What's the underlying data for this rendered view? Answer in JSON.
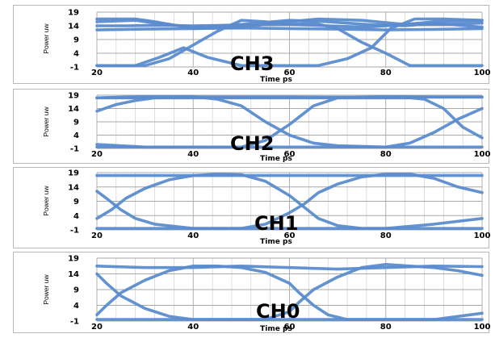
{
  "figure": {
    "title": ""
  },
  "colors": {
    "trace": "#5b8ccf",
    "grid": "#c9c9c9",
    "frame": "#b8b8b8"
  },
  "chart_data": [
    {
      "type": "line",
      "title": "CH3",
      "xlabel": "Time ps",
      "ylabel": "Power uw",
      "xlim": [
        20,
        100
      ],
      "ylim": [
        -1,
        19
      ],
      "xticks": [
        "20",
        "40",
        "60",
        "80",
        "100"
      ],
      "yticks": [
        "19",
        "14",
        "9",
        "4",
        "-1"
      ],
      "grid": true,
      "series": [
        {
          "x": [
            20,
            28,
            32,
            40,
            50,
            60,
            66,
            75,
            84,
            90,
            100
          ],
          "y": [
            16.5,
            16.5,
            15.5,
            13,
            13.5,
            15.5,
            16.5,
            16,
            14.5,
            15.5,
            16
          ]
        },
        {
          "x": [
            20,
            26,
            33,
            40,
            50,
            60,
            68,
            76,
            84,
            92,
            100
          ],
          "y": [
            14,
            14,
            14.2,
            14,
            14.3,
            14.5,
            14,
            13.5,
            14.5,
            14.5,
            15
          ]
        },
        {
          "x": [
            20,
            30,
            40,
            50,
            60,
            70,
            80,
            90,
            100
          ],
          "y": [
            12.5,
            12.8,
            13,
            13.2,
            13,
            12.8,
            12.5,
            12.7,
            13
          ]
        },
        {
          "x": [
            20,
            28,
            32,
            40,
            50,
            60,
            68,
            76,
            84,
            90,
            100
          ],
          "y": [
            15.5,
            16,
            15,
            13.5,
            14.5,
            16,
            15.5,
            14.5,
            14,
            15,
            13.5
          ]
        },
        {
          "x": [
            20,
            30,
            35,
            40,
            45,
            50,
            55,
            60,
            65,
            70,
            75,
            80,
            85,
            90,
            100
          ],
          "y": [
            -0.5,
            -0.5,
            2,
            7,
            12,
            16,
            15.5,
            14.5,
            15,
            13,
            8,
            4,
            -0.5,
            -0.5,
            -0.5
          ]
        },
        {
          "x": [
            20,
            28,
            33,
            38,
            43,
            50,
            60,
            66,
            72,
            77,
            81,
            86,
            92,
            100
          ],
          "y": [
            -0.5,
            -0.5,
            2.5,
            6,
            2.5,
            -0.5,
            -0.5,
            -0.5,
            2,
            6,
            13,
            16.5,
            16.5,
            16
          ]
        }
      ]
    },
    {
      "type": "line",
      "title": "CH2",
      "xlabel": "Time ps",
      "ylabel": "Power uw",
      "xlim": [
        20,
        100
      ],
      "ylim": [
        -1,
        19
      ],
      "xticks": [
        "20",
        "40",
        "60",
        "80",
        "100"
      ],
      "yticks": [
        "19",
        "14",
        "9",
        "4",
        "-1"
      ],
      "grid": true,
      "series": [
        {
          "x": [
            20,
            30,
            35,
            40,
            45,
            50,
            55,
            60,
            65,
            70,
            80,
            90,
            100
          ],
          "y": [
            18,
            18.5,
            18.5,
            18.5,
            17.5,
            15,
            9,
            4,
            1,
            0,
            -0.5,
            -0.5,
            -0.5
          ]
        },
        {
          "x": [
            20,
            30,
            40,
            50,
            55,
            60,
            65,
            70,
            80,
            90,
            100
          ],
          "y": [
            0.5,
            -0.5,
            -0.5,
            -0.5,
            2,
            8,
            15,
            18,
            18.5,
            18.3,
            18.3
          ]
        },
        {
          "x": [
            20,
            24,
            28,
            32,
            40,
            50,
            60,
            70,
            80,
            90,
            95,
            100
          ],
          "y": [
            13,
            15.5,
            17,
            18,
            18.3,
            18.3,
            18.3,
            18.2,
            18.2,
            18.3,
            18.3,
            18.3
          ]
        },
        {
          "x": [
            20,
            60,
            70,
            80,
            85,
            90,
            95,
            100
          ],
          "y": [
            -0.5,
            -0.5,
            -0.5,
            -0.5,
            1,
            5,
            10,
            14
          ]
        },
        {
          "x": [
            20,
            60,
            70,
            80,
            85,
            88,
            92,
            96,
            100
          ],
          "y": [
            18,
            18,
            18,
            18,
            18,
            17.5,
            14,
            7,
            3
          ]
        }
      ]
    },
    {
      "type": "line",
      "title": "CH1",
      "xlabel": "Time ps",
      "ylabel": "Power uw",
      "xlim": [
        20,
        100
      ],
      "ylim": [
        -1,
        19
      ],
      "xticks": [
        "20",
        "40",
        "60",
        "80",
        "100"
      ],
      "yticks": [
        "19",
        "14",
        "9",
        "4",
        "-1"
      ],
      "grid": true,
      "series": [
        {
          "x": [
            20,
            40,
            60,
            80,
            100
          ],
          "y": [
            18,
            18,
            18,
            18,
            18
          ]
        },
        {
          "x": [
            20,
            22,
            25,
            28,
            32,
            40,
            50,
            60,
            70,
            80,
            90,
            100
          ],
          "y": [
            12.5,
            10,
            6,
            3,
            1,
            -0.5,
            -0.5,
            -0.5,
            -0.5,
            -0.5,
            1,
            3
          ]
        },
        {
          "x": [
            20,
            23,
            26,
            30,
            35,
            40,
            45,
            50,
            55,
            60,
            63,
            66,
            70,
            75,
            80,
            85,
            90,
            95,
            100
          ],
          "y": [
            3,
            6,
            10,
            13.5,
            16.5,
            18,
            18.5,
            18.3,
            16,
            11,
            7,
            3,
            0.5,
            -0.5,
            -0.5,
            -0.5,
            -0.5,
            -0.5,
            -0.5
          ]
        },
        {
          "x": [
            20,
            50,
            55,
            60,
            63,
            66,
            70,
            75,
            80,
            85,
            90,
            95,
            100
          ],
          "y": [
            -0.5,
            -0.5,
            1,
            5,
            8,
            12,
            15,
            17.5,
            18.5,
            18.5,
            17,
            14,
            12
          ]
        }
      ]
    },
    {
      "type": "line",
      "title": "CH0",
      "xlabel": "Time ps",
      "ylabel": "Power uw",
      "xlim": [
        20,
        100
      ],
      "ylim": [
        -1,
        19
      ],
      "xticks": [
        "20",
        "40",
        "60",
        "80",
        "100"
      ],
      "yticks": [
        "19",
        "14",
        "9",
        "4",
        "-1"
      ],
      "grid": true,
      "series": [
        {
          "x": [
            20,
            30,
            40,
            50,
            60,
            70,
            80,
            90,
            100
          ],
          "y": [
            16.5,
            16,
            16,
            16.5,
            16,
            15.5,
            16,
            16.5,
            16.3
          ]
        },
        {
          "x": [
            20,
            22,
            25,
            30,
            35,
            40,
            50,
            60,
            70,
            80,
            90,
            100
          ],
          "y": [
            14,
            11,
            7,
            3,
            0.5,
            -0.5,
            -0.5,
            -0.5,
            -0.5,
            -0.5,
            -0.5,
            1.5
          ]
        },
        {
          "x": [
            20,
            22,
            25,
            30,
            35,
            40,
            45,
            50,
            55,
            60,
            62,
            65,
            68,
            72,
            76,
            80,
            90,
            100
          ],
          "y": [
            1,
            4,
            8,
            12,
            15,
            16.5,
            16.5,
            16,
            14.5,
            11,
            8,
            4,
            1,
            -0.5,
            -0.5,
            -0.5,
            -0.5,
            -0.5
          ]
        },
        {
          "x": [
            20,
            55,
            60,
            62,
            65,
            70,
            75,
            80,
            85,
            90,
            95,
            100
          ],
          "y": [
            -0.5,
            -0.5,
            2,
            5,
            9,
            13,
            16,
            17,
            16.5,
            16,
            15,
            13.5
          ]
        }
      ]
    }
  ]
}
